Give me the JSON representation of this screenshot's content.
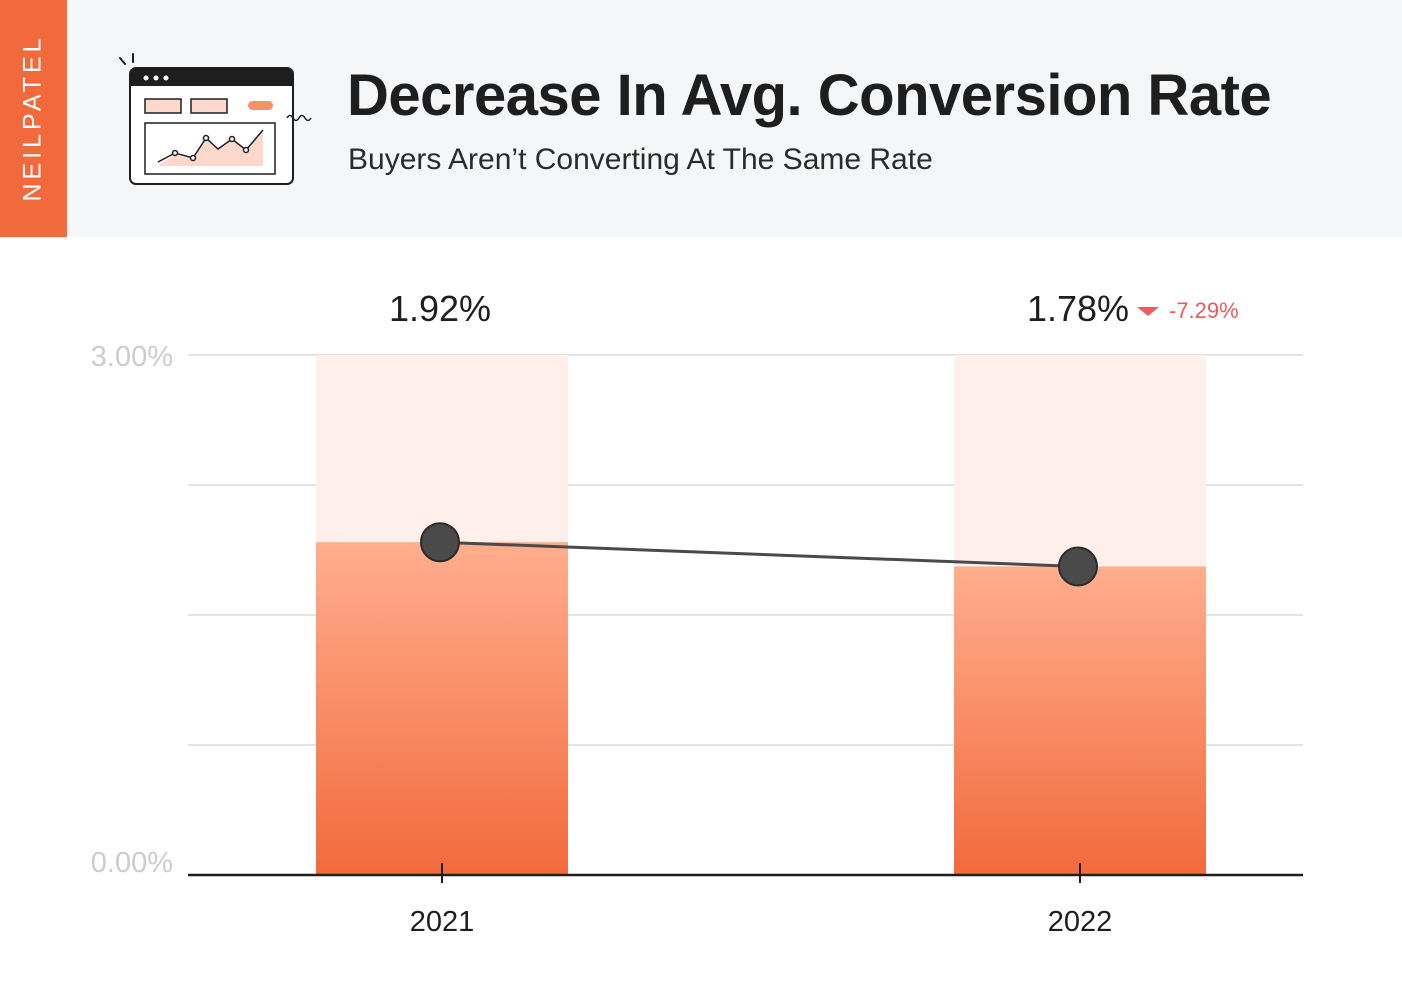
{
  "brand": "NEILPATEL",
  "header": {
    "title": "Decrease In Avg. Conversion Rate",
    "subtitle": "Buyers Aren’t Converting At The Same Rate"
  },
  "colors": {
    "accent": "#f26a3c",
    "bar_top": "#ffae8e",
    "bar_bottom": "#f26a3c",
    "bar_background": "#feefeb",
    "line": "#4a4a4a",
    "negative": "#f05a5a",
    "grid": "#e3e3e3",
    "axis_label": "#cccccc"
  },
  "chart_data": {
    "type": "bar",
    "categories": [
      "2021",
      "2022"
    ],
    "values": [
      1.92,
      1.78
    ],
    "value_labels": [
      "1.92%",
      "1.78%"
    ],
    "change_label": "-7.29%",
    "overlay": "line",
    "ylim": [
      0,
      3
    ],
    "ytick_labels": [
      "0.00%",
      "3.00%"
    ],
    "grid": true
  }
}
